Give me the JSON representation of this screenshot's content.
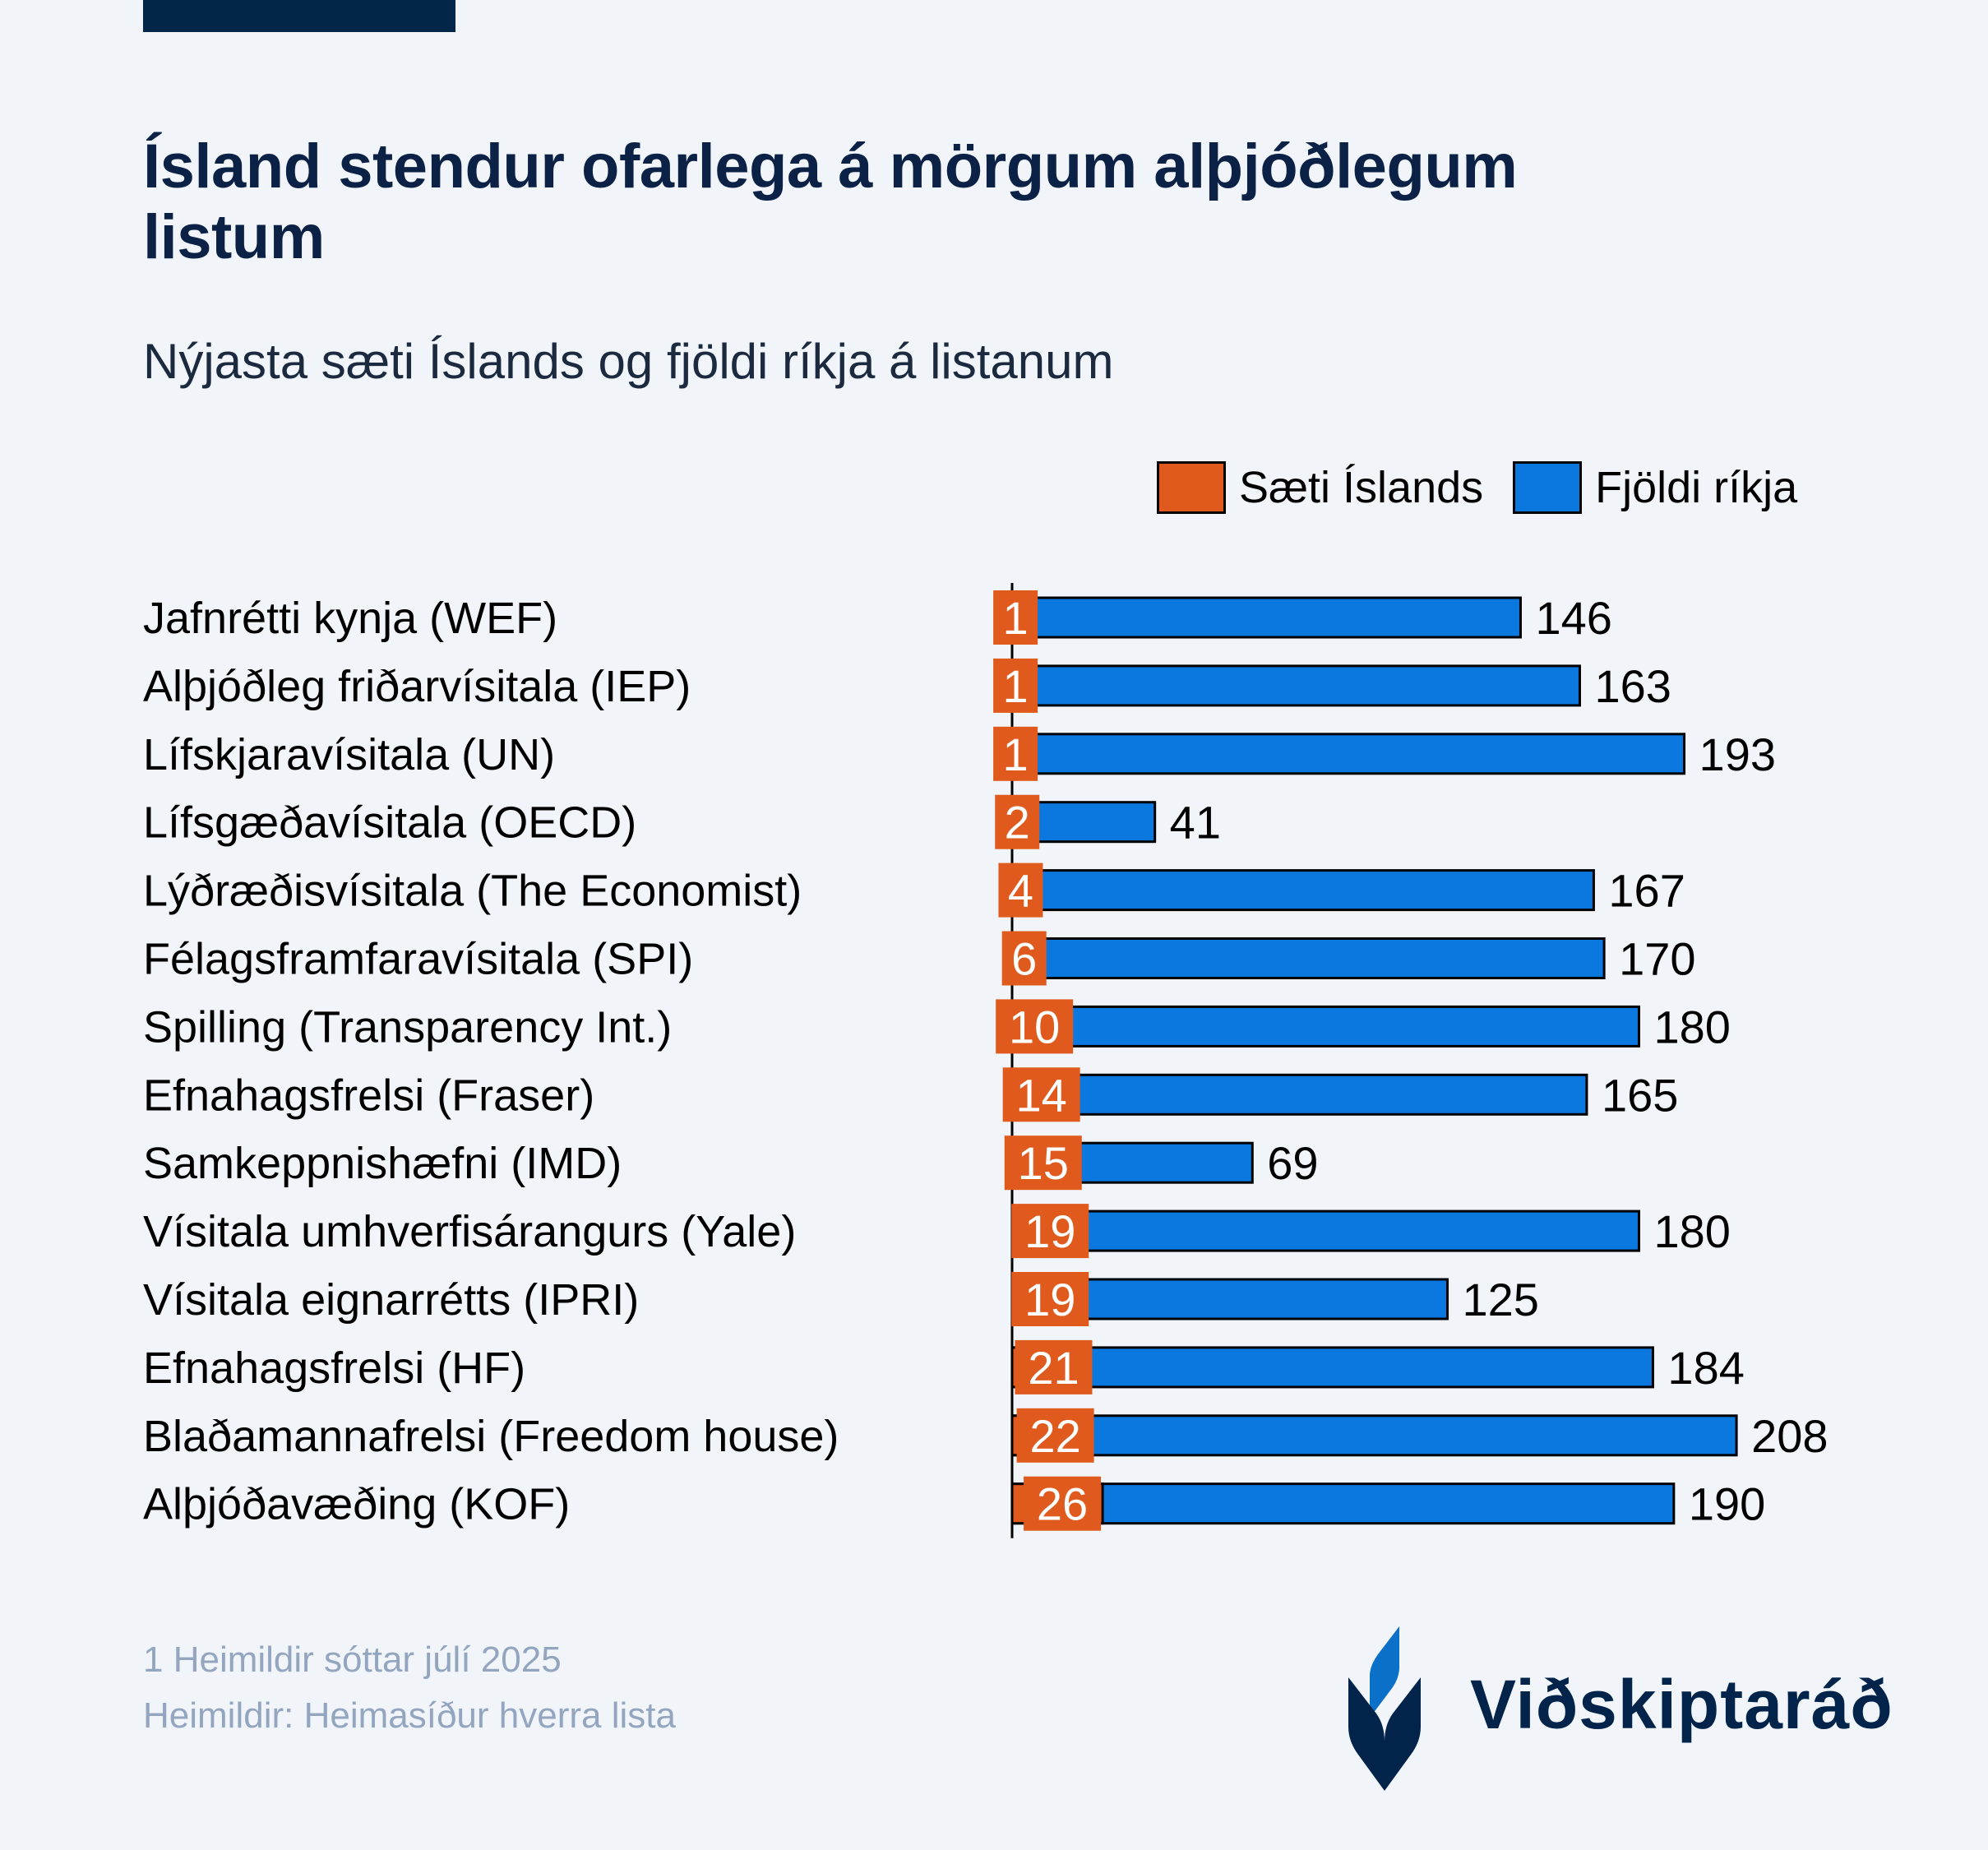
{
  "header": {
    "title": "Ísland stendur ofarlega á mörgum alþjóðlegum listum",
    "subtitle": "Nýjasta sæti Íslands og fjöldi ríkja á listanum"
  },
  "legend": [
    {
      "label": "Sæti Íslands",
      "color": "#e05a1e"
    },
    {
      "label": "Fjöldi ríkja",
      "color": "#0b78e0"
    }
  ],
  "chart_data": {
    "type": "bar",
    "orientation": "horizontal",
    "title": "Ísland stendur ofarlega á mörgum alþjóðlegum listum",
    "subtitle": "Nýjasta sæti Íslands og fjöldi ríkja á listanum",
    "xlabel": "",
    "ylabel": "",
    "xlim": [
      0,
      208
    ],
    "grid": false,
    "legend_position": "top-right",
    "categories": [
      "Jafnrétti kynja (WEF)",
      "Alþjóðleg friðarvísitala (IEP)",
      "Lífskjaravísitala (UN)",
      "Lífsgæðavísitala (OECD)",
      "Lýðræðisvísitala (The Economist)",
      "Félagsframfaravísitala (SPI)",
      "Spilling (Transparency Int.)",
      "Efnahagsfrelsi (Fraser)",
      "Samkeppnishæfni (IMD)",
      "Vísitala umhverfisárangurs (Yale)",
      "Vísitala eignarrétts (IPRI)",
      "Efnahagsfrelsi (HF)",
      "Blaðamannafrelsi (Freedom house)",
      "Alþjóðavæðing (KOF)"
    ],
    "series": [
      {
        "name": "Sæti Íslands",
        "color": "#e05a1e",
        "values": [
          1,
          1,
          1,
          2,
          4,
          6,
          10,
          14,
          15,
          19,
          19,
          21,
          22,
          26
        ]
      },
      {
        "name": "Fjöldi ríkja",
        "color": "#0b78e0",
        "values": [
          146,
          163,
          193,
          41,
          167,
          170,
          180,
          165,
          69,
          180,
          125,
          184,
          208,
          190
        ]
      }
    ]
  },
  "footer": {
    "note": "1 Heimildir sóttar júlí 2025",
    "source": "Heimildir: Heimasíður hverra lista"
  },
  "logo": {
    "text": "Viðskiptaráð"
  }
}
